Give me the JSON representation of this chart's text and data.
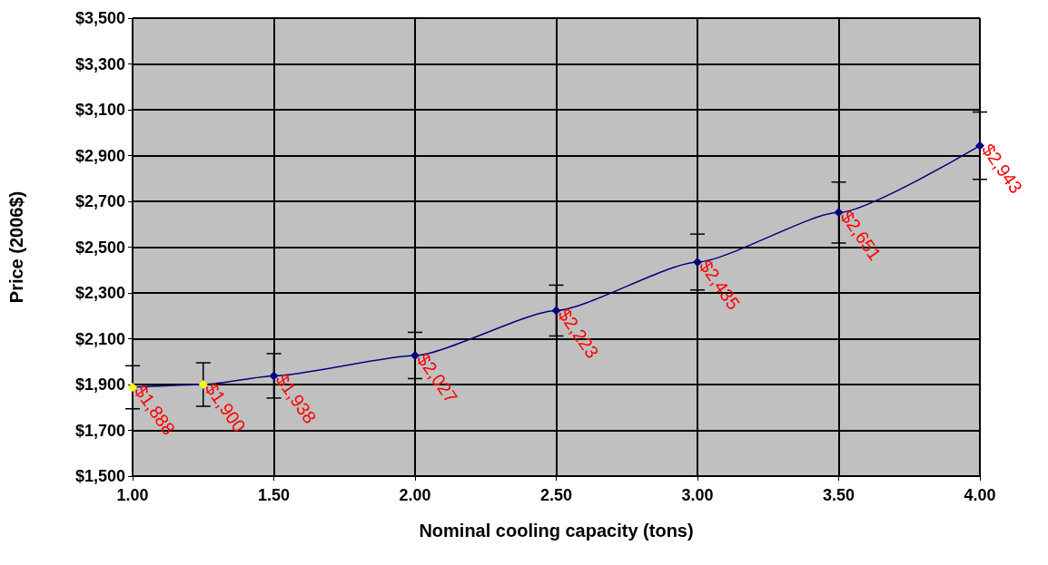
{
  "chart_data": {
    "type": "line",
    "xlabel": "Nominal cooling capacity (tons)",
    "ylabel": "Price (2006$)",
    "x": [
      1.0,
      1.25,
      1.5,
      2.0,
      2.5,
      3.0,
      3.5,
      4.0
    ],
    "series": [
      {
        "color": "#000080",
        "colors": [
          "#ffff00",
          "#ffff00",
          "#000080",
          "#000080",
          "#000080",
          "#000080",
          "#000080",
          "#000080"
        ],
        "values": [
          1888,
          1900,
          1938,
          2027,
          2223,
          2435,
          2651,
          2943
        ],
        "errors": [
          94,
          95,
          97,
          101,
          111,
          122,
          133,
          147
        ],
        "value_labels": [
          "$1,888",
          "$1,900",
          "$1,938",
          "$2,027",
          "$2,223",
          "$2,435",
          "$2,651",
          "$2,943"
        ]
      }
    ],
    "xlim": [
      1.0,
      4.0
    ],
    "xticks": [
      {
        "value": 1.0,
        "label": "1.00"
      },
      {
        "value": 1.5,
        "label": "1.50"
      },
      {
        "value": 2.0,
        "label": "2.00"
      },
      {
        "value": 2.5,
        "label": "2.50"
      },
      {
        "value": 3.0,
        "label": "3.00"
      },
      {
        "value": 3.5,
        "label": "3.50"
      },
      {
        "value": 4.0,
        "label": "4.00"
      }
    ],
    "ylim": [
      1500,
      3500
    ],
    "yticks": [
      {
        "value": 1500,
        "label": "$1,500"
      },
      {
        "value": 1700,
        "label": "$1,700"
      },
      {
        "value": 1900,
        "label": "$1,900"
      },
      {
        "value": 2100,
        "label": "$2,100"
      },
      {
        "value": 2300,
        "label": "$2,300"
      },
      {
        "value": 2500,
        "label": "$2,500"
      },
      {
        "value": 2700,
        "label": "$2,700"
      },
      {
        "value": 2900,
        "label": "$2,900"
      },
      {
        "value": 3100,
        "label": "$3,100"
      },
      {
        "value": 3300,
        "label": "$3,300"
      },
      {
        "value": 3500,
        "label": "$3,500"
      }
    ],
    "grid": true,
    "marker": "diamond",
    "line_style": "solid"
  }
}
